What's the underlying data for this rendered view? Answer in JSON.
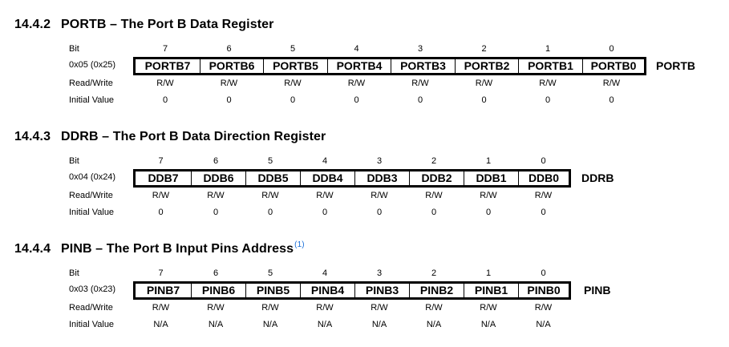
{
  "row_labels": {
    "bit": "Bit",
    "read_write": "Read/Write",
    "initial_value": "Initial Value"
  },
  "sections": [
    {
      "number": "14.4.2",
      "title": "PORTB – The Port B Data Register",
      "footnote": "",
      "address": "0x05 (0x25)",
      "register_name": "PORTB",
      "bits": [
        "7",
        "6",
        "5",
        "4",
        "3",
        "2",
        "1",
        "0"
      ],
      "fields": [
        "PORTB7",
        "PORTB6",
        "PORTB5",
        "PORTB4",
        "PORTB3",
        "PORTB2",
        "PORTB1",
        "PORTB0"
      ],
      "access": [
        "R/W",
        "R/W",
        "R/W",
        "R/W",
        "R/W",
        "R/W",
        "R/W",
        "R/W"
      ],
      "initial": [
        "0",
        "0",
        "0",
        "0",
        "0",
        "0",
        "0",
        "0"
      ]
    },
    {
      "number": "14.4.3",
      "title": "DDRB – The Port B Data Direction Register",
      "footnote": "",
      "address": "0x04 (0x24)",
      "register_name": "DDRB",
      "bits": [
        "7",
        "6",
        "5",
        "4",
        "3",
        "2",
        "1",
        "0"
      ],
      "fields": [
        "DDB7",
        "DDB6",
        "DDB5",
        "DDB4",
        "DDB3",
        "DDB2",
        "DDB1",
        "DDB0"
      ],
      "access": [
        "R/W",
        "R/W",
        "R/W",
        "R/W",
        "R/W",
        "R/W",
        "R/W",
        "R/W"
      ],
      "initial": [
        "0",
        "0",
        "0",
        "0",
        "0",
        "0",
        "0",
        "0"
      ]
    },
    {
      "number": "14.4.4",
      "title": "PINB – The Port B Input Pins Address",
      "footnote": "(1)",
      "address": "0x03 (0x23)",
      "register_name": "PINB",
      "bits": [
        "7",
        "6",
        "5",
        "4",
        "3",
        "2",
        "1",
        "0"
      ],
      "fields": [
        "PINB7",
        "PINB6",
        "PINB5",
        "PINB4",
        "PINB3",
        "PINB2",
        "PINB1",
        "PINB0"
      ],
      "access": [
        "R/W",
        "R/W",
        "R/W",
        "R/W",
        "R/W",
        "R/W",
        "R/W",
        "R/W"
      ],
      "initial": [
        "N/A",
        "N/A",
        "N/A",
        "N/A",
        "N/A",
        "N/A",
        "N/A",
        "N/A"
      ]
    }
  ]
}
